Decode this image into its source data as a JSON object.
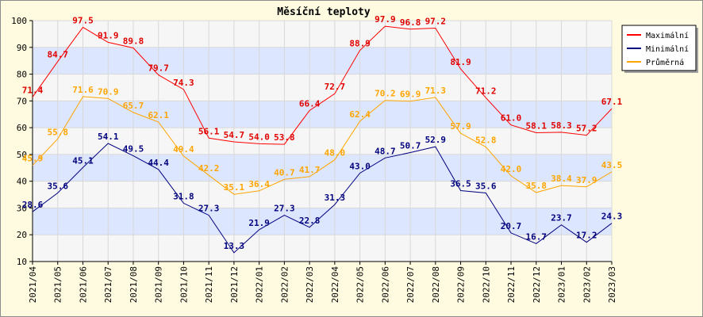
{
  "chart_data": {
    "type": "line",
    "title": "Měsíční teploty",
    "xlabel": "",
    "ylabel": "",
    "ylim": [
      10,
      100
    ],
    "yticks": [
      10,
      20,
      30,
      40,
      50,
      60,
      70,
      80,
      90,
      100
    ],
    "grid": true,
    "legend_position": "top-right",
    "categories": [
      "2021/04",
      "2021/05",
      "2021/06",
      "2021/07",
      "2021/08",
      "2021/09",
      "2021/10",
      "2021/11",
      "2021/12",
      "2022/01",
      "2022/02",
      "2022/03",
      "2022/04",
      "2022/05",
      "2022/06",
      "2022/07",
      "2022/08",
      "2022/09",
      "2022/10",
      "2022/11",
      "2022/12",
      "2023/01",
      "2023/02",
      "2023/03"
    ],
    "series": [
      {
        "name": "Maximální",
        "color": "#ff0000",
        "label_color": "#e00000",
        "values": [
          71.4,
          84.7,
          97.5,
          91.9,
          89.8,
          79.7,
          74.3,
          56.1,
          54.7,
          54.0,
          53.8,
          66.4,
          72.7,
          88.9,
          97.9,
          96.8,
          97.2,
          81.9,
          71.2,
          61.0,
          58.1,
          58.3,
          57.2,
          67.1
        ]
      },
      {
        "name": "Minimální",
        "color": "#00007f",
        "label_color": "#00007f",
        "values": [
          28.6,
          35.6,
          45.1,
          54.1,
          49.5,
          44.4,
          31.8,
          27.3,
          13.3,
          21.9,
          27.3,
          22.8,
          31.3,
          43.0,
          48.7,
          50.7,
          52.9,
          36.5,
          35.6,
          20.7,
          16.7,
          23.7,
          17.2,
          24.3
        ]
      },
      {
        "name": "Průměrná",
        "color": "#ffa500",
        "label_color": "#ffa500",
        "values": [
          45.9,
          55.8,
          71.6,
          70.9,
          65.7,
          62.1,
          49.4,
          42.2,
          35.1,
          36.4,
          40.7,
          41.7,
          48.0,
          62.4,
          70.2,
          69.9,
          71.3,
          57.9,
          52.8,
          42.0,
          35.8,
          38.4,
          37.9,
          43.5
        ]
      }
    ]
  }
}
